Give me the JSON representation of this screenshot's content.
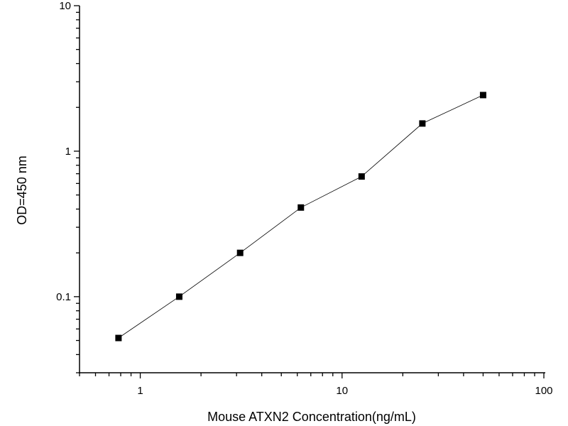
{
  "chart_data": {
    "type": "line",
    "title": "",
    "xlabel": "Mouse ATXN2 Concentration(ng/mL)",
    "ylabel": "OD=450 nm",
    "x_scale": "log",
    "y_scale": "log",
    "xlim": [
      0.5,
      100
    ],
    "ylim": [
      0.03,
      10
    ],
    "x_ticks": [
      1,
      10,
      100
    ],
    "x_tick_labels": [
      "1",
      "10",
      "100"
    ],
    "y_ticks": [
      0.1,
      1,
      10
    ],
    "y_tick_labels": [
      "0.1",
      "1",
      "10"
    ],
    "grid": false,
    "legend": "none",
    "marker": "square",
    "colors": {
      "line": "#000000",
      "marker": "#000000"
    },
    "series": [
      {
        "x": [
          0.78,
          1.56,
          3.125,
          6.25,
          12.5,
          25,
          50
        ],
        "y": [
          0.052,
          0.1,
          0.2,
          0.41,
          0.67,
          1.55,
          2.43
        ]
      }
    ]
  }
}
